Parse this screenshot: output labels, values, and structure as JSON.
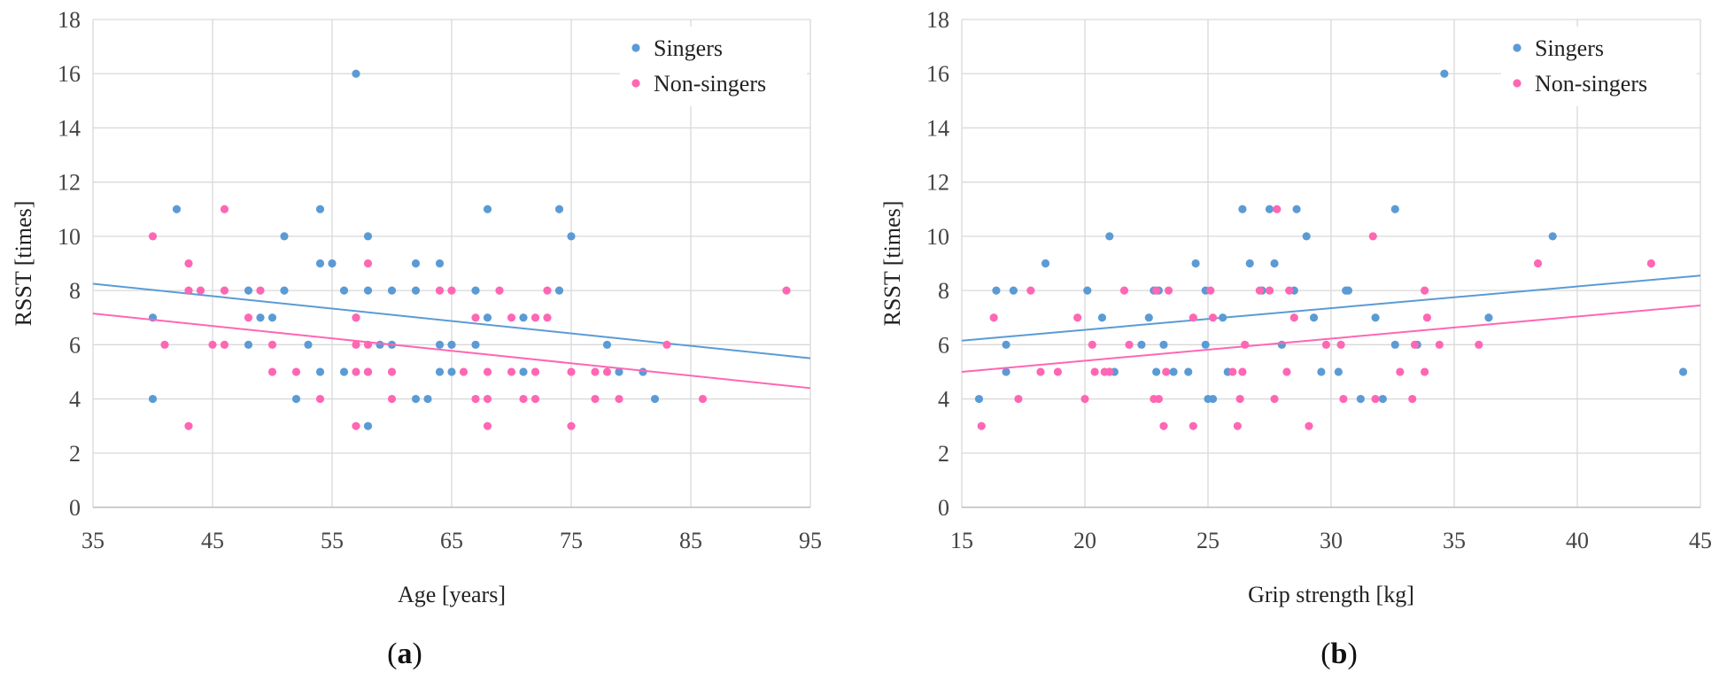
{
  "colors": {
    "singers": "#5b9bd5",
    "non_singers": "#ff66b3",
    "grid": "#d9d9d9",
    "axis": "#bfbfbf"
  },
  "chart_data": [
    {
      "id": "a",
      "panel_label": "a",
      "type": "scatter",
      "title": "",
      "xlabel": "Age [years]",
      "ylabel": "RSST [times]",
      "xlim": [
        35,
        95
      ],
      "ylim": [
        0,
        18
      ],
      "xticks": [
        35,
        45,
        55,
        65,
        75,
        85,
        95
      ],
      "yticks": [
        0,
        2,
        4,
        6,
        8,
        10,
        12,
        14,
        16,
        18
      ],
      "grid": true,
      "legend": "top-right",
      "series": [
        {
          "name": "Singers",
          "color": "#5b9bd5",
          "trendline": [
            [
              35,
              8.25
            ],
            [
              95,
              5.5
            ]
          ],
          "points": [
            [
              40,
              7
            ],
            [
              40,
              4
            ],
            [
              42,
              11
            ],
            [
              48,
              8
            ],
            [
              48,
              6
            ],
            [
              49,
              7
            ],
            [
              50,
              7
            ],
            [
              51,
              10
            ],
            [
              51,
              8
            ],
            [
              52,
              4
            ],
            [
              53,
              6
            ],
            [
              54,
              11
            ],
            [
              54,
              9
            ],
            [
              54,
              5
            ],
            [
              55,
              9
            ],
            [
              56,
              8
            ],
            [
              56,
              5
            ],
            [
              57,
              16
            ],
            [
              57,
              7
            ],
            [
              58,
              10
            ],
            [
              58,
              8
            ],
            [
              58,
              5
            ],
            [
              58,
              3
            ],
            [
              59,
              6
            ],
            [
              60,
              8
            ],
            [
              60,
              6
            ],
            [
              62,
              9
            ],
            [
              62,
              8
            ],
            [
              62,
              4
            ],
            [
              63,
              4
            ],
            [
              64,
              9
            ],
            [
              64,
              6
            ],
            [
              64,
              5
            ],
            [
              65,
              6
            ],
            [
              65,
              5
            ],
            [
              67,
              8
            ],
            [
              67,
              6
            ],
            [
              68,
              11
            ],
            [
              68,
              7
            ],
            [
              71,
              7
            ],
            [
              71,
              5
            ],
            [
              74,
              11
            ],
            [
              74,
              8
            ],
            [
              75,
              10
            ],
            [
              78,
              6
            ],
            [
              79,
              5
            ],
            [
              81,
              5
            ],
            [
              82,
              4
            ]
          ]
        },
        {
          "name": "Non-singers",
          "color": "#ff66b3",
          "trendline": [
            [
              35,
              7.15
            ],
            [
              95,
              4.4
            ]
          ],
          "points": [
            [
              40,
              10
            ],
            [
              41,
              6
            ],
            [
              43,
              9
            ],
            [
              43,
              8
            ],
            [
              43,
              3
            ],
            [
              44,
              8
            ],
            [
              45,
              6
            ],
            [
              46,
              11
            ],
            [
              46,
              8
            ],
            [
              46,
              6
            ],
            [
              48,
              7
            ],
            [
              49,
              8
            ],
            [
              50,
              6
            ],
            [
              50,
              5
            ],
            [
              52,
              5
            ],
            [
              54,
              4
            ],
            [
              57,
              7
            ],
            [
              57,
              6
            ],
            [
              57,
              5
            ],
            [
              57,
              3
            ],
            [
              58,
              9
            ],
            [
              58,
              6
            ],
            [
              58,
              5
            ],
            [
              60,
              5
            ],
            [
              60,
              4
            ],
            [
              64,
              8
            ],
            [
              65,
              8
            ],
            [
              66,
              5
            ],
            [
              67,
              7
            ],
            [
              67,
              4
            ],
            [
              68,
              5
            ],
            [
              68,
              4
            ],
            [
              68,
              3
            ],
            [
              69,
              8
            ],
            [
              70,
              7
            ],
            [
              70,
              5
            ],
            [
              71,
              4
            ],
            [
              72,
              7
            ],
            [
              72,
              5
            ],
            [
              72,
              4
            ],
            [
              73,
              8
            ],
            [
              73,
              7
            ],
            [
              75,
              5
            ],
            [
              75,
              3
            ],
            [
              77,
              5
            ],
            [
              77,
              4
            ],
            [
              78,
              5
            ],
            [
              79,
              4
            ],
            [
              83,
              6
            ],
            [
              86,
              4
            ],
            [
              93,
              8
            ]
          ]
        }
      ]
    },
    {
      "id": "b",
      "panel_label": "b",
      "type": "scatter",
      "title": "",
      "xlabel": "Grip strength [kg]",
      "ylabel": "RSST [times]",
      "xlim": [
        15,
        45
      ],
      "ylim": [
        0,
        18
      ],
      "xticks": [
        15,
        20,
        25,
        30,
        35,
        40,
        45
      ],
      "yticks": [
        0,
        2,
        4,
        6,
        8,
        10,
        12,
        14,
        16,
        18
      ],
      "grid": true,
      "legend": "top-right",
      "series": [
        {
          "name": "Singers",
          "color": "#5b9bd5",
          "trendline": [
            [
              15,
              6.15
            ],
            [
              45,
              8.55
            ]
          ],
          "points": [
            [
              15.7,
              4
            ],
            [
              16.4,
              8
            ],
            [
              16.8,
              6
            ],
            [
              16.8,
              5
            ],
            [
              17.1,
              8
            ],
            [
              18.4,
              9
            ],
            [
              20.1,
              8
            ],
            [
              20.7,
              7
            ],
            [
              21,
              10
            ],
            [
              21,
              5
            ],
            [
              21.2,
              5
            ],
            [
              22.3,
              6
            ],
            [
              22.6,
              7
            ],
            [
              22.8,
              8
            ],
            [
              22.9,
              5
            ],
            [
              23,
              8
            ],
            [
              23.2,
              6
            ],
            [
              23.6,
              5
            ],
            [
              24.2,
              5
            ],
            [
              24.5,
              9
            ],
            [
              24.9,
              8
            ],
            [
              24.9,
              6
            ],
            [
              25,
              4
            ],
            [
              25.2,
              4
            ],
            [
              25.6,
              7
            ],
            [
              25.8,
              5
            ],
            [
              26.4,
              11
            ],
            [
              26.7,
              9
            ],
            [
              27.2,
              8
            ],
            [
              27.5,
              11
            ],
            [
              27.7,
              9
            ],
            [
              28,
              6
            ],
            [
              28.5,
              8
            ],
            [
              28.6,
              11
            ],
            [
              29,
              10
            ],
            [
              29.3,
              7
            ],
            [
              29.6,
              5
            ],
            [
              30.3,
              5
            ],
            [
              30.6,
              8
            ],
            [
              30.7,
              8
            ],
            [
              31.2,
              4
            ],
            [
              31.8,
              7
            ],
            [
              32.1,
              4
            ],
            [
              32.6,
              11
            ],
            [
              32.6,
              6
            ],
            [
              33.5,
              6
            ],
            [
              34.6,
              16
            ],
            [
              36.4,
              7
            ],
            [
              39,
              10
            ],
            [
              44.3,
              5
            ]
          ]
        },
        {
          "name": "Non-singers",
          "color": "#ff66b3",
          "trendline": [
            [
              15,
              5.0
            ],
            [
              45,
              7.45
            ]
          ],
          "points": [
            [
              15.8,
              3
            ],
            [
              16.3,
              7
            ],
            [
              17.3,
              4
            ],
            [
              17.8,
              8
            ],
            [
              18.2,
              5
            ],
            [
              18.9,
              5
            ],
            [
              19.7,
              7
            ],
            [
              20,
              4
            ],
            [
              20.3,
              6
            ],
            [
              20.4,
              5
            ],
            [
              20.8,
              5
            ],
            [
              21,
              5
            ],
            [
              21.6,
              8
            ],
            [
              21.8,
              6
            ],
            [
              22.8,
              4
            ],
            [
              22.9,
              8
            ],
            [
              23,
              4
            ],
            [
              23.2,
              3
            ],
            [
              23.3,
              5
            ],
            [
              23.4,
              8
            ],
            [
              24.4,
              7
            ],
            [
              24.4,
              3
            ],
            [
              25.1,
              8
            ],
            [
              25.2,
              7
            ],
            [
              26,
              5
            ],
            [
              26.2,
              3
            ],
            [
              26.3,
              4
            ],
            [
              26.4,
              5
            ],
            [
              26.5,
              6
            ],
            [
              27.1,
              8
            ],
            [
              27.5,
              8
            ],
            [
              27.7,
              4
            ],
            [
              27.8,
              11
            ],
            [
              28.2,
              5
            ],
            [
              28.3,
              8
            ],
            [
              28.5,
              7
            ],
            [
              29.1,
              3
            ],
            [
              29.8,
              6
            ],
            [
              30.4,
              6
            ],
            [
              30.5,
              4
            ],
            [
              31.7,
              10
            ],
            [
              31.8,
              4
            ],
            [
              32.8,
              5
            ],
            [
              33.3,
              4
            ],
            [
              33.4,
              6
            ],
            [
              33.8,
              8
            ],
            [
              33.8,
              5
            ],
            [
              33.9,
              7
            ],
            [
              34.4,
              6
            ],
            [
              36,
              6
            ],
            [
              38.4,
              9
            ],
            [
              43,
              9
            ]
          ]
        }
      ]
    }
  ]
}
